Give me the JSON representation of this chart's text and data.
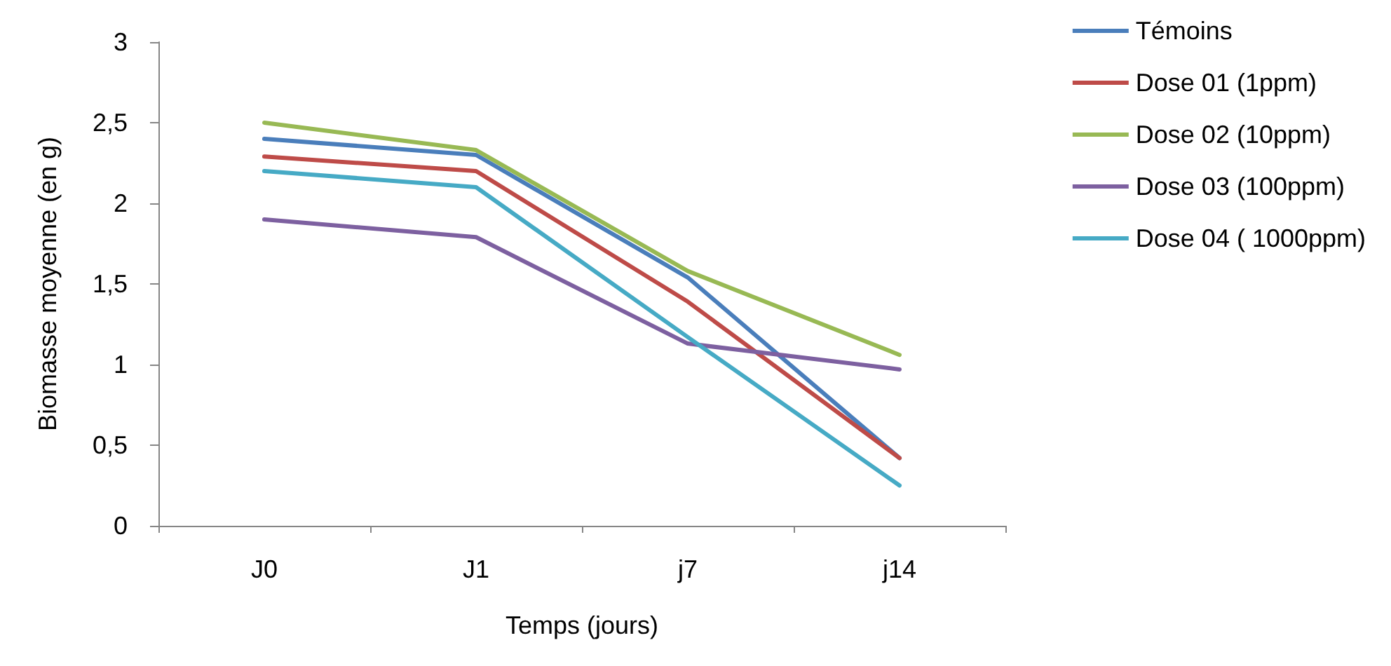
{
  "chart_data": {
    "type": "line",
    "xlabel": "Temps (jours)",
    "ylabel": "Biomasse moyenne (en g)",
    "categories": [
      "J0",
      "J1",
      "j7",
      "j14"
    ],
    "series": [
      {
        "name": "Témoins",
        "color": "#4a7ebb",
        "values": [
          2.4,
          2.3,
          1.54,
          0.42
        ]
      },
      {
        "name": "Dose 01 (1ppm)",
        "color": "#be4b48",
        "values": [
          2.29,
          2.2,
          1.39,
          0.42
        ]
      },
      {
        "name": "Dose 02 (10ppm)",
        "color": "#98b954",
        "values": [
          2.5,
          2.33,
          1.58,
          1.06
        ]
      },
      {
        "name": "Dose 03 (100ppm)",
        "color": "#7d60a0",
        "values": [
          1.9,
          1.79,
          1.13,
          0.97
        ]
      },
      {
        "name": "Dose 04 ( 1000ppm)",
        "color": "#46aac5",
        "values": [
          2.2,
          2.1,
          1.17,
          0.25
        ]
      }
    ],
    "ylim": [
      0,
      3
    ],
    "yticks": [
      0,
      {
        "value": 0.5,
        "label": "0,5"
      },
      1,
      {
        "value": 1.5,
        "label": "1,5"
      },
      2,
      {
        "value": 2.5,
        "label": "2,5"
      },
      3
    ],
    "grid": false,
    "legend": "right",
    "marker": "none",
    "line_style": "solid"
  }
}
